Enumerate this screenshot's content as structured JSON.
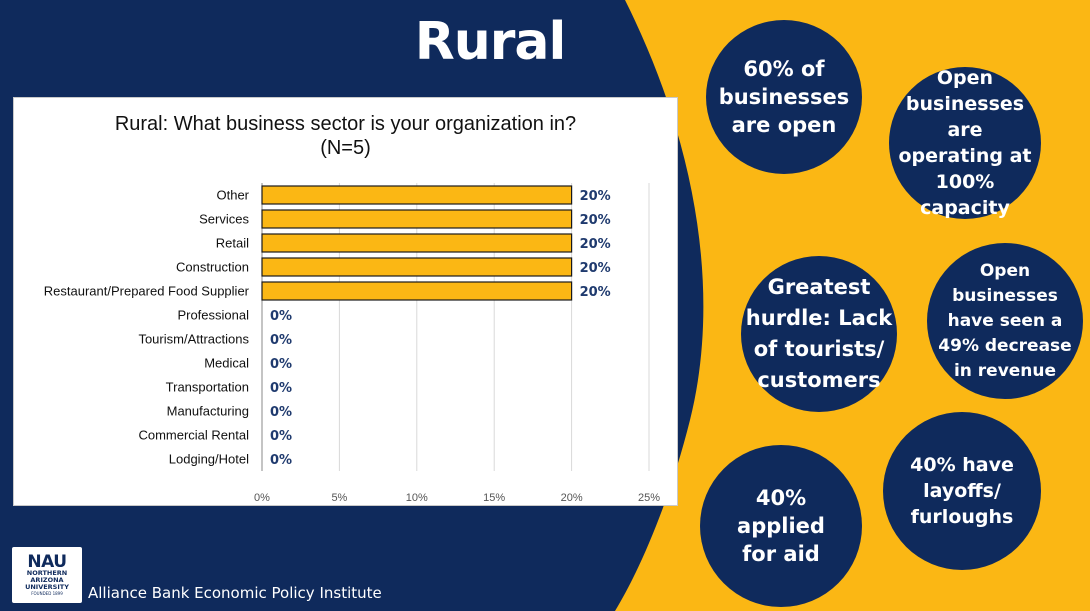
{
  "slide": {
    "title": "Rural",
    "colors": {
      "navy": "#0f2a5c",
      "gold": "#fbb714",
      "bar": "#fbb714",
      "bar_outline": "#1a1a1a",
      "label": "#1f3a6e"
    },
    "footer": {
      "institute": "Alliance Bank Economic Policy Institute",
      "logo": {
        "line1": "NAU",
        "line2": "NORTHERN",
        "line3": "ARIZONA",
        "line4": "UNIVERSITY",
        "line5": "FOUNDED 1899"
      }
    },
    "bubbles": [
      {
        "lines": [
          "60% of",
          "businesses",
          "are open"
        ]
      },
      {
        "lines": [
          "Open",
          "businesses are",
          "operating at",
          "100% capacity"
        ]
      },
      {
        "lines": [
          "Greatest",
          "hurdle: Lack",
          "of tourists/",
          "customers"
        ]
      },
      {
        "lines": [
          "Open",
          "businesses",
          "have seen a",
          "49% decrease",
          "in revenue"
        ]
      },
      {
        "lines": [
          "40%",
          "applied",
          "for aid"
        ]
      },
      {
        "lines": [
          "40% have",
          "layoffs/",
          "furloughs"
        ]
      }
    ]
  },
  "chart_data": {
    "type": "bar",
    "orientation": "horizontal",
    "title": "Rural: What business sector is your organization in?",
    "subtitle": "(N=5)",
    "categories": [
      "Other",
      "Services",
      "Retail",
      "Construction",
      "Restaurant/Prepared Food Supplier",
      "Professional",
      "Tourism/Attractions",
      "Medical",
      "Transportation",
      "Manufacturing",
      "Commercial Rental",
      "Lodging/Hotel"
    ],
    "values": [
      20,
      20,
      20,
      20,
      20,
      0,
      0,
      0,
      0,
      0,
      0,
      0
    ],
    "value_labels": [
      "20%",
      "20%",
      "20%",
      "20%",
      "20%",
      "0%",
      "0%",
      "0%",
      "0%",
      "0%",
      "0%",
      "0%"
    ],
    "xlim": [
      0,
      25
    ],
    "xticks": [
      0,
      5,
      10,
      15,
      20,
      25
    ],
    "xtick_labels": [
      "0%",
      "5%",
      "10%",
      "15%",
      "20%",
      "25%"
    ],
    "grid": true,
    "legend": "none"
  }
}
